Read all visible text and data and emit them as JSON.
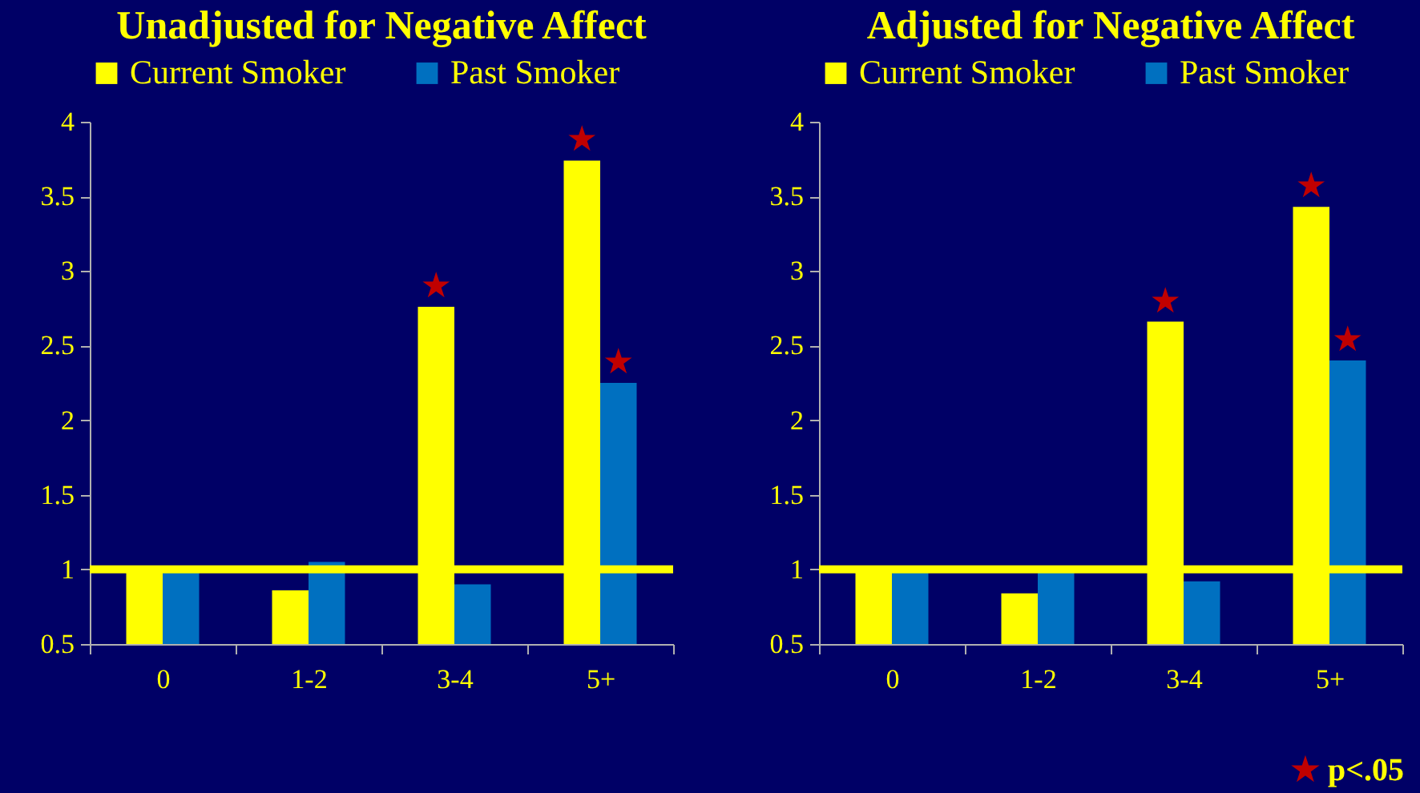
{
  "chart_data": [
    {
      "type": "bar",
      "title": "Unadjusted for Negative Affect",
      "categories": [
        "0",
        "1-2",
        "3-4",
        "5+"
      ],
      "series": [
        {
          "name": "Current Smoker",
          "color": "#ffff00",
          "values": [
            1.0,
            0.86,
            2.76,
            3.74
          ]
        },
        {
          "name": "Past Smoker",
          "color": "#0070c0",
          "values": [
            0.98,
            1.05,
            0.9,
            2.25
          ]
        }
      ],
      "ylim": [
        0.5,
        4
      ],
      "yticks": [
        0.5,
        1,
        1.5,
        2,
        2.5,
        3,
        3.5,
        4
      ],
      "grid": false,
      "legend": "top",
      "ref_lines": [
        {
          "axis": "y",
          "value": 1,
          "color": "#ffff00"
        }
      ],
      "annotations": [
        {
          "text": "★",
          "x": "3-4",
          "y": 2.76
        },
        {
          "text": "★",
          "x": "5+",
          "y": 3.74
        },
        {
          "text": "★",
          "x": "5+",
          "y": 2.25
        }
      ]
    },
    {
      "type": "bar",
      "title": "Adjusted for Negative Affect",
      "categories": [
        "0",
        "1-2",
        "3-4",
        "5+"
      ],
      "series": [
        {
          "name": "Current Smoker",
          "color": "#ffff00",
          "values": [
            1.0,
            0.84,
            2.66,
            3.43
          ]
        },
        {
          "name": "Past Smoker",
          "color": "#0070c0",
          "values": [
            1.0,
            1.0,
            0.92,
            2.4
          ]
        }
      ],
      "ylim": [
        0.5,
        4
      ],
      "yticks": [
        0.5,
        1,
        1.5,
        2,
        2.5,
        3,
        3.5,
        4
      ],
      "grid": false,
      "legend": "top",
      "ref_lines": [
        {
          "axis": "y",
          "value": 1,
          "color": "#ffff00"
        }
      ],
      "annotations": [
        {
          "text": "★",
          "x": "3-4",
          "y": 2.66
        },
        {
          "text": "★",
          "x": "5+",
          "y": 3.43
        },
        {
          "text": "★",
          "x": "5+",
          "y": 2.4
        },
        "★ p<.05"
      ]
    }
  ]
}
